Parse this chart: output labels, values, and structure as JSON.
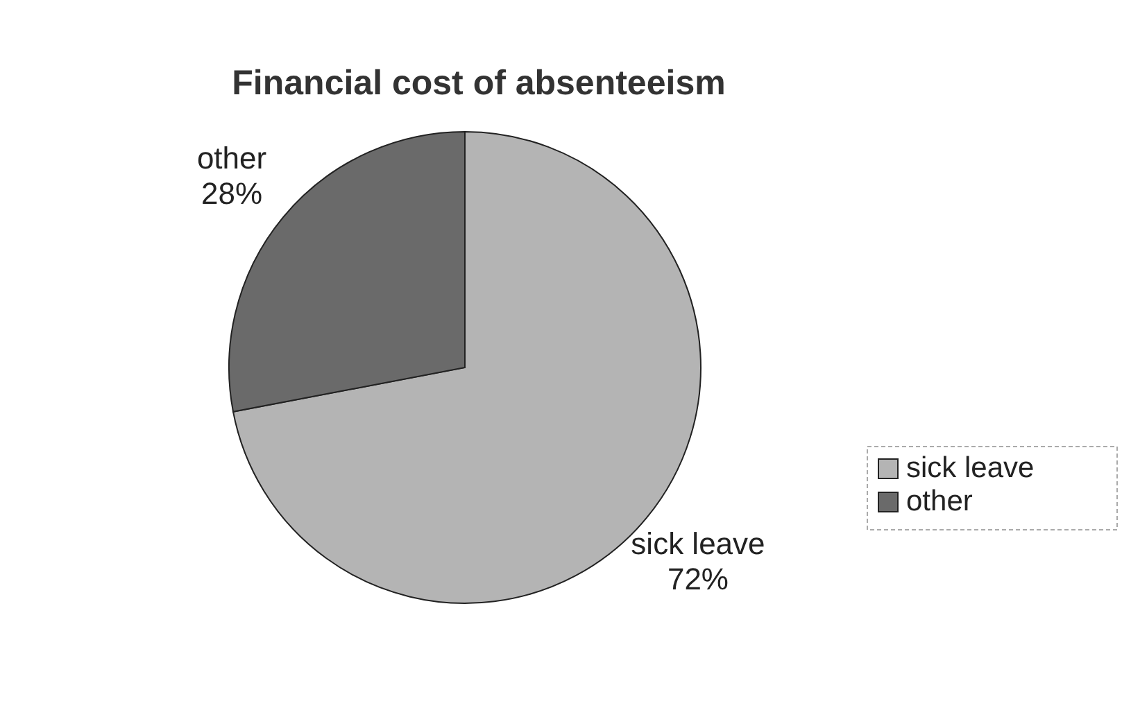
{
  "chart_data": {
    "type": "pie",
    "title": "Financial cost of absenteeism",
    "categories": [
      "sick leave",
      "other"
    ],
    "values": [
      72,
      28
    ],
    "colors": [
      "#b4b4b4",
      "#6a6a6a"
    ],
    "value_labels": [
      "72%",
      "28%"
    ],
    "legend": "right"
  }
}
